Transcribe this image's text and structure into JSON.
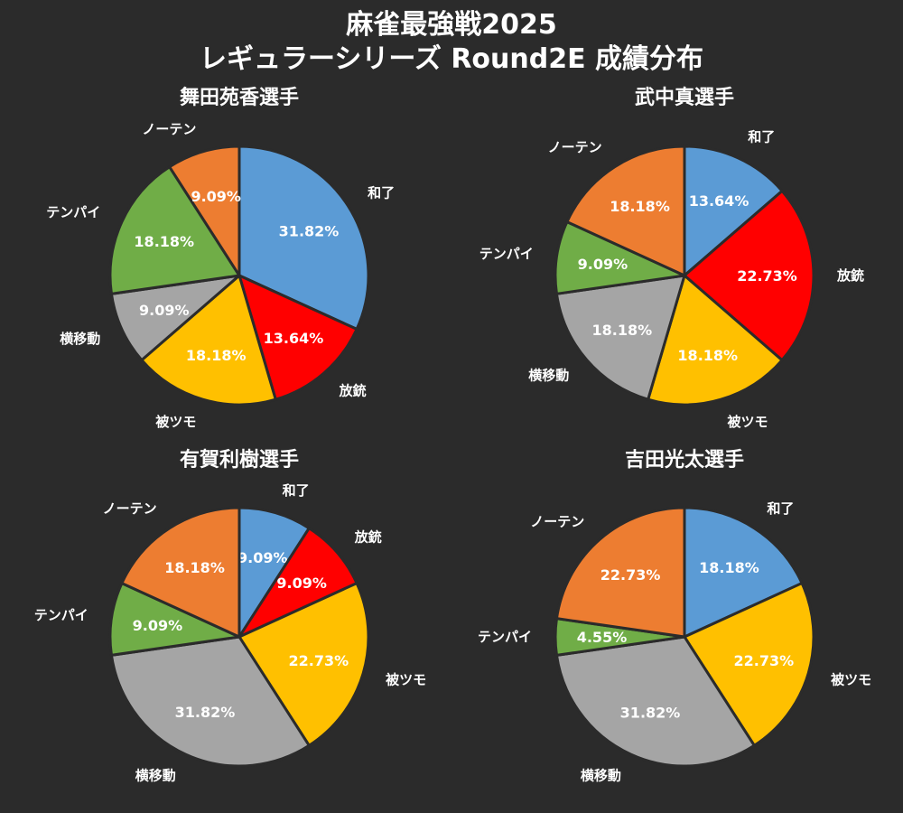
{
  "title": {
    "line1": "麻雀最強戦2025",
    "line2": "レギュラーシリーズ Round2E 成績分布"
  },
  "colors": {
    "background": "#2b2b2b",
    "和了": "#5b9bd5",
    "放銃": "#ff0000",
    "被ツモ": "#ffc000",
    "横移動": "#a5a5a5",
    "テンパイ": "#70ad47",
    "ノーテン": "#ed7d31",
    "slice_border": "#2b2b2b"
  },
  "chart_data": [
    {
      "type": "pie",
      "title": "舞田苑香選手",
      "categories": [
        "和了",
        "放銃",
        "被ツモ",
        "横移動",
        "テンパイ",
        "ノーテン"
      ],
      "values": [
        31.82,
        13.64,
        18.18,
        9.09,
        18.18,
        9.09
      ],
      "labels": [
        "31.82%",
        "13.64%",
        "18.18%",
        "9.09%",
        "18.18%",
        "9.09%"
      ]
    },
    {
      "type": "pie",
      "title": "武中真選手",
      "categories": [
        "和了",
        "放銃",
        "被ツモ",
        "横移動",
        "テンパイ",
        "ノーテン"
      ],
      "values": [
        13.64,
        22.73,
        18.18,
        18.18,
        9.09,
        18.18
      ],
      "labels": [
        "13.64%",
        "22.73%",
        "18.18%",
        "18.18%",
        "9.09%",
        "18.18%"
      ]
    },
    {
      "type": "pie",
      "title": "有賀利樹選手",
      "categories": [
        "和了",
        "放銃",
        "被ツモ",
        "横移動",
        "テンパイ",
        "ノーテン"
      ],
      "values": [
        9.09,
        9.09,
        22.73,
        31.82,
        9.09,
        18.18
      ],
      "labels": [
        "9.09%",
        "9.09%",
        "22.73%",
        "31.82%",
        "9.09%",
        "18.18%"
      ]
    },
    {
      "type": "pie",
      "title": "吉田光太選手",
      "categories": [
        "和了",
        "被ツモ",
        "横移動",
        "テンパイ",
        "ノーテン"
      ],
      "values": [
        18.18,
        22.73,
        31.82,
        4.55,
        22.73
      ],
      "labels": [
        "18.18%",
        "22.73%",
        "31.82%",
        "4.55%",
        "22.73%"
      ]
    }
  ]
}
